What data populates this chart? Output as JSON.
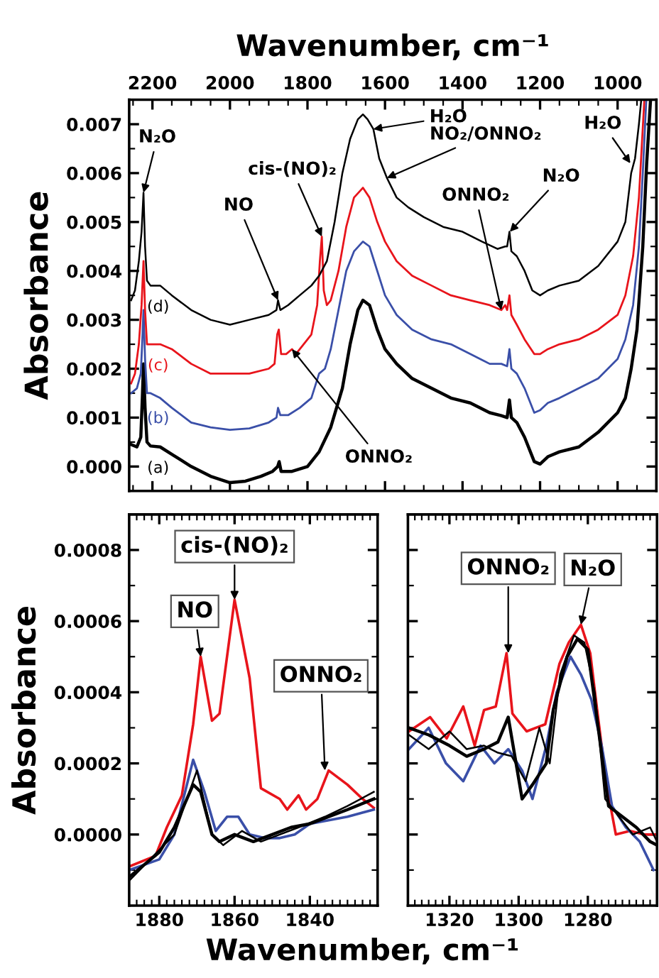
{
  "chart_data": [
    {
      "type": "line",
      "xlabel": "Wavenumber, cm⁻¹",
      "ylabel": "Absorbance",
      "xlim": [
        2260,
        900
      ],
      "ylim": [
        -0.0005,
        0.0075
      ],
      "xticks": [
        2200,
        2000,
        1800,
        1600,
        1400,
        1200,
        1000
      ],
      "yticks": [
        {
          "value": 0,
          "label": "0.000"
        },
        {
          "value": 0.001,
          "label": "0.001"
        },
        {
          "value": 0.002,
          "label": "0.002"
        },
        {
          "value": 0.003,
          "label": "0.003"
        },
        {
          "value": 0.004,
          "label": "0.004"
        },
        {
          "value": 0.005,
          "label": "0.005"
        },
        {
          "value": 0.006,
          "label": "0.006"
        },
        {
          "value": 0.007,
          "label": "0.007"
        }
      ],
      "series": [
        {
          "name": "(a)",
          "color": "#000000",
          "x": [
            2255,
            2240,
            2230,
            2226,
            2223,
            2219,
            2214,
            2205,
            2180,
            2150,
            2100,
            2050,
            2000,
            1960,
            1920,
            1890,
            1877,
            1873,
            1868,
            1840,
            1800,
            1770,
            1740,
            1710,
            1690,
            1670,
            1657,
            1640,
            1620,
            1600,
            1570,
            1530,
            1480,
            1430,
            1380,
            1330,
            1300,
            1285,
            1279,
            1274,
            1260,
            1240,
            1215,
            1200,
            1180,
            1150,
            1100,
            1050,
            1000,
            980,
            965,
            950,
            935,
            925,
            915
          ],
          "values": [
            0.00045,
            0.0004,
            0.0006,
            0.0014,
            0.0021,
            0.0012,
            0.0005,
            0.00042,
            0.0004,
            0.00025,
            0.0,
            -0.0002,
            -0.00033,
            -0.0003,
            -0.0002,
            -0.0001,
            0.0,
            0.0001,
            -0.0001,
            -0.0001,
            0.0,
            0.0003,
            0.0008,
            0.0016,
            0.0025,
            0.0032,
            0.0034,
            0.0033,
            0.0028,
            0.0024,
            0.0021,
            0.0018,
            0.0016,
            0.0014,
            0.0013,
            0.0011,
            0.00104,
            0.001,
            0.00136,
            0.001,
            0.0009,
            0.0006,
            0.0001,
            5e-05,
            0.0002,
            0.0003,
            0.0004,
            0.0007,
            0.0011,
            0.0014,
            0.002,
            0.0028,
            0.0045,
            0.0062,
            0.0075
          ]
        },
        {
          "name": "(b)",
          "color": "#3a4fa8",
          "x": [
            2255,
            2240,
            2230,
            2226,
            2223,
            2219,
            2214,
            2205,
            2180,
            2150,
            2100,
            2050,
            2000,
            1950,
            1900,
            1880,
            1876,
            1870,
            1850,
            1820,
            1790,
            1770,
            1755,
            1740,
            1720,
            1700,
            1680,
            1657,
            1640,
            1620,
            1600,
            1570,
            1530,
            1480,
            1430,
            1380,
            1330,
            1300,
            1285,
            1279,
            1274,
            1260,
            1240,
            1215,
            1200,
            1180,
            1150,
            1100,
            1050,
            1000,
            980,
            960,
            945,
            935,
            926
          ],
          "values": [
            0.0015,
            0.0016,
            0.0019,
            0.0026,
            0.0032,
            0.0022,
            0.0015,
            0.0015,
            0.0014,
            0.0012,
            0.0009,
            0.0008,
            0.00075,
            0.00078,
            0.0009,
            0.001,
            0.0012,
            0.00105,
            0.00105,
            0.0012,
            0.0014,
            0.0019,
            0.002,
            0.0024,
            0.0032,
            0.004,
            0.0044,
            0.0046,
            0.0045,
            0.004,
            0.0035,
            0.0031,
            0.0028,
            0.0026,
            0.0025,
            0.0023,
            0.0021,
            0.0021,
            0.00205,
            0.0024,
            0.002,
            0.0019,
            0.0016,
            0.0011,
            0.00115,
            0.0013,
            0.0014,
            0.0016,
            0.0018,
            0.0022,
            0.0026,
            0.0033,
            0.0045,
            0.006,
            0.0075
          ]
        },
        {
          "name": "(c)",
          "color": "#e8141b",
          "x": [
            2255,
            2245,
            2235,
            2228,
            2223,
            2219,
            2214,
            2205,
            2180,
            2150,
            2100,
            2050,
            2000,
            1950,
            1900,
            1885,
            1878,
            1874,
            1868,
            1855,
            1840,
            1830,
            1810,
            1790,
            1775,
            1768,
            1763,
            1758,
            1750,
            1740,
            1720,
            1700,
            1680,
            1657,
            1640,
            1620,
            1600,
            1570,
            1530,
            1480,
            1430,
            1380,
            1330,
            1300,
            1290,
            1285,
            1279,
            1274,
            1260,
            1240,
            1215,
            1200,
            1180,
            1150,
            1100,
            1050,
            1000,
            980,
            960,
            945,
            938,
            931
          ],
          "values": [
            0.0017,
            0.0019,
            0.0025,
            0.0033,
            0.0042,
            0.0032,
            0.0025,
            0.0025,
            0.0025,
            0.0024,
            0.0021,
            0.0019,
            0.0019,
            0.0019,
            0.002,
            0.0021,
            0.0027,
            0.0028,
            0.0023,
            0.0023,
            0.0024,
            0.0023,
            0.0025,
            0.0027,
            0.0033,
            0.0042,
            0.0047,
            0.0036,
            0.0033,
            0.0034,
            0.004,
            0.0049,
            0.0055,
            0.0057,
            0.0055,
            0.005,
            0.0046,
            0.0042,
            0.0039,
            0.0037,
            0.0035,
            0.0034,
            0.0033,
            0.0032,
            0.0033,
            0.0032,
            0.0035,
            0.0031,
            0.0029,
            0.0026,
            0.0023,
            0.0023,
            0.0024,
            0.0025,
            0.0026,
            0.0028,
            0.0031,
            0.0035,
            0.0043,
            0.0055,
            0.0065,
            0.0075
          ]
        },
        {
          "name": "(d)",
          "color": "#000000",
          "x": [
            2255,
            2245,
            2235,
            2228,
            2223,
            2219,
            2214,
            2205,
            2180,
            2150,
            2100,
            2050,
            2000,
            1950,
            1900,
            1880,
            1876,
            1870,
            1850,
            1820,
            1790,
            1770,
            1750,
            1730,
            1710,
            1690,
            1670,
            1657,
            1645,
            1630,
            1615,
            1595,
            1570,
            1540,
            1500,
            1450,
            1400,
            1350,
            1310,
            1290,
            1285,
            1279,
            1274,
            1260,
            1240,
            1220,
            1200,
            1180,
            1150,
            1100,
            1050,
            1000,
            980,
            965,
            955,
            945,
            939
          ],
          "values": [
            0.0034,
            0.0036,
            0.0042,
            0.0048,
            0.0056,
            0.0045,
            0.0038,
            0.0037,
            0.0037,
            0.0035,
            0.0032,
            0.003,
            0.0029,
            0.003,
            0.0031,
            0.0032,
            0.0034,
            0.0032,
            0.0033,
            0.0035,
            0.0037,
            0.0039,
            0.0042,
            0.005,
            0.006,
            0.0067,
            0.0071,
            0.0072,
            0.0071,
            0.0069,
            0.0063,
            0.0059,
            0.0055,
            0.0053,
            0.0051,
            0.0049,
            0.0048,
            0.0046,
            0.00445,
            0.0045,
            0.0045,
            0.0048,
            0.0044,
            0.0043,
            0.004,
            0.0036,
            0.0035,
            0.0036,
            0.0037,
            0.0038,
            0.0041,
            0.0046,
            0.005,
            0.006,
            0.0063,
            0.007,
            0.0075
          ]
        }
      ],
      "annotations": [
        {
          "text": "N₂O",
          "x": 2223,
          "y": 0.0056
        },
        {
          "text": "NO",
          "x": 1876,
          "y": 0.0034
        },
        {
          "text": "cis-(NO)₂",
          "x": 1763,
          "y": 0.0047
        },
        {
          "text": "H₂O",
          "x": 1630,
          "y": 0.0069
        },
        {
          "text": "NO₂/ONNO₂",
          "x": 1595,
          "y": 0.0059
        },
        {
          "text": "ONNO₂",
          "x": 1300,
          "y": 0.0032
        },
        {
          "text": "N₂O",
          "x": 1278,
          "y": 0.0048
        },
        {
          "text": "H₂O",
          "x": 967,
          "y": 0.0062
        },
        {
          "text": "ONNO₂",
          "x": 1840,
          "y": 0.0024
        }
      ]
    },
    {
      "type": "line",
      "xlabel": "Wavenumber, cm⁻¹",
      "ylabel": "Absorbance",
      "xlim": [
        1888,
        1822
      ],
      "ylim": [
        -0.0002,
        0.0009
      ],
      "xticks": [
        1880,
        1860,
        1840
      ],
      "yticks": [
        {
          "value": 0,
          "label": "0.0000"
        },
        {
          "value": 0.0002,
          "label": "0.0002"
        },
        {
          "value": 0.0004,
          "label": "0.0004"
        },
        {
          "value": 0.0006,
          "label": "0.0006"
        },
        {
          "value": 0.0008,
          "label": "0.0008"
        }
      ],
      "series": [
        {
          "color": "#e8141b",
          "x": [
            1888,
            1881,
            1878,
            1874,
            1871,
            1869,
            1866,
            1864,
            1860,
            1856,
            1853,
            1848,
            1846,
            1843,
            1841,
            1838,
            1835,
            1830,
            1826,
            1823
          ],
          "values": [
            -9e-05,
            -6e-05,
            2e-05,
            0.00011,
            0.00031,
            0.0005,
            0.00032,
            0.00034,
            0.00066,
            0.00044,
            0.00013,
            0.0001,
            7e-05,
            0.00011,
            7e-05,
            0.0001,
            0.00018,
            0.00014,
            0.0001,
            7.5e-05
          ]
        },
        {
          "color": "#3a4fa8",
          "x": [
            1888,
            1880,
            1876,
            1871,
            1868,
            1865,
            1862,
            1859,
            1856,
            1852,
            1848,
            1844,
            1840,
            1835,
            1830,
            1823
          ],
          "values": [
            -0.0001,
            -7e-05,
            0.0,
            0.00021,
            0.00012,
            1e-05,
            5e-05,
            5e-05,
            0.0,
            -1e-05,
            -1e-05,
            0.0,
            3e-05,
            4e-05,
            5e-05,
            7e-05
          ]
        },
        {
          "color": "#000000",
          "x": [
            1888,
            1880,
            1876,
            1871,
            1869,
            1866,
            1864,
            1860,
            1855,
            1850,
            1845,
            1840,
            1835,
            1830,
            1823
          ],
          "values": [
            -0.00012,
            -5e-05,
            2e-05,
            0.00014,
            0.00012,
            0.0,
            -2e-05,
            0.0,
            -2e-05,
            0.0,
            2e-05,
            3e-05,
            5e-05,
            7e-05,
            0.0001
          ]
        },
        {
          "color": "#000000",
          "x": [
            1888,
            1876,
            1870,
            1866,
            1863,
            1858,
            1853,
            1848,
            1843,
            1836,
            1830,
            1823
          ],
          "values": [
            -0.00013,
            0.0,
            0.00018,
            0.0,
            -3e-05,
            1e-05,
            -2e-05,
            0.0,
            2e-05,
            5e-05,
            8e-05,
            0.00012
          ]
        }
      ],
      "annotations": [
        {
          "text": "NO",
          "x": 1869,
          "y": 0.0005
        },
        {
          "text": "cis-(NO)₂",
          "x": 1860,
          "y": 0.00066
        },
        {
          "text": "ONNO₂",
          "x": 1836,
          "y": 0.00018
        }
      ]
    },
    {
      "type": "line",
      "tick_labels": "x",
      "xlim": [
        1332,
        1260
      ],
      "ylim": [
        -0.0002,
        0.0009
      ],
      "xticks": [
        1320,
        1300,
        1280
      ],
      "yticks": [
        0,
        0.0002,
        0.0004,
        0.0006,
        0.0008
      ],
      "series": [
        {
          "color": "#e8141b",
          "x": [
            1331.7,
            1325.6,
            1320.8,
            1316,
            1312.7,
            1310,
            1306.6,
            1303.5,
            1301.8,
            1297.7,
            1292.3,
            1288.2,
            1285.5,
            1282,
            1279.3,
            1277.3,
            1274.6,
            1271.9,
            1267.8,
            1263.7,
            1260.3
          ],
          "values": [
            0.00029,
            0.00033,
            0.00027,
            0.00036,
            0.00025,
            0.00035,
            0.00036,
            0.00051,
            0.00034,
            0.00029,
            0.00031,
            0.00048,
            0.00054,
            0.00059,
            0.00051,
            0.00035,
            0.00014,
            0.0,
            1e-05,
            0.0,
            0.0
          ]
        },
        {
          "color": "#3a4fa8",
          "x": [
            1331.7,
            1326,
            1321,
            1316,
            1311,
            1307,
            1303,
            1299,
            1296,
            1292,
            1289,
            1285,
            1282,
            1279,
            1276,
            1273,
            1269,
            1265,
            1261
          ],
          "values": [
            0.00024,
            0.0003,
            0.0002,
            0.00015,
            0.00025,
            0.0002,
            0.00024,
            0.00018,
            0.0001,
            0.00025,
            0.0004,
            0.0005,
            0.00045,
            0.00038,
            0.00025,
            8e-05,
            2e-05,
            -2e-05,
            -0.0001
          ]
        },
        {
          "color": "#000000",
          "x": [
            1331.7,
            1326,
            1320,
            1315,
            1310,
            1306,
            1303,
            1299,
            1296,
            1292,
            1290,
            1286,
            1283,
            1280,
            1277,
            1274,
            1270,
            1266,
            1262,
            1260
          ],
          "values": [
            0.0003,
            0.00028,
            0.00025,
            0.00022,
            0.00024,
            0.00026,
            0.00033,
            0.0001,
            0.00014,
            0.0002,
            0.00035,
            0.0005,
            0.00055,
            0.00052,
            0.0003,
            8e-05,
            5e-05,
            2e-05,
            -2e-05,
            -3e-05
          ]
        },
        {
          "color": "#000000",
          "x": [
            1331.7,
            1326,
            1320,
            1315,
            1310,
            1306,
            1302,
            1298,
            1294,
            1291,
            1288,
            1284,
            1281,
            1278,
            1275,
            1271,
            1267,
            1262,
            1260
          ],
          "values": [
            0.00028,
            0.00024,
            0.00029,
            0.00024,
            0.00025,
            0.00023,
            0.00022,
            0.00015,
            0.0003,
            0.0002,
            0.00045,
            0.00056,
            0.00054,
            0.0004,
            0.0001,
            5e-05,
            0.0,
            2e-05,
            -2e-05
          ]
        }
      ],
      "annotations": [
        {
          "text": "ONNO₂",
          "x": 1303,
          "y": 0.00051
        },
        {
          "text": "N₂O",
          "x": 1282,
          "y": 0.00059
        }
      ]
    }
  ]
}
